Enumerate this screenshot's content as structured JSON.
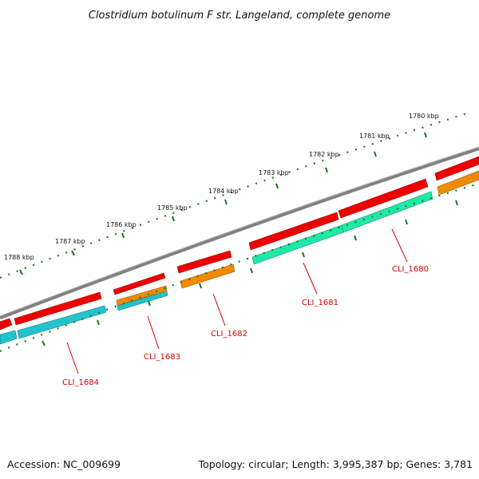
{
  "title": "Clostridium botulinum F str. Langeland, complete genome",
  "footer": {
    "accession": "Accession: NC_009699",
    "info": "Topology: circular; Length: 3,995,387 bp; Genes: 3,781"
  },
  "scale_labels": [
    "1780 kbp",
    "1781 kbp",
    "1782 kbp",
    "1783 kbp",
    "1784 kbp",
    "1785 kbp",
    "1786 kbp",
    "1787 kbp",
    "1788 kbp"
  ],
  "gene_labels": [
    "CLI_1680",
    "CLI_1681",
    "CLI_1682",
    "CLI_1683",
    "CLI_1684"
  ],
  "colors": {
    "backbone": "#808080",
    "cds_forward": "#ee0000",
    "cds_cyan": "#22c4cc",
    "cds_green": "#20e8a8",
    "cds_orange": "#f28a00",
    "tick": "#1a7a1a",
    "label": "#d40000"
  }
}
